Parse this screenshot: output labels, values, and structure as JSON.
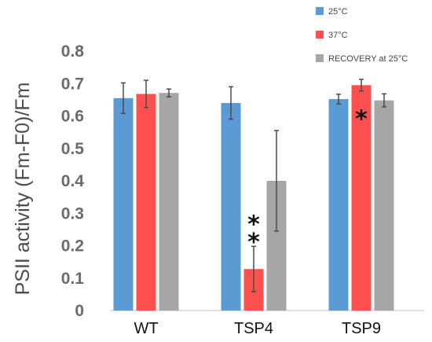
{
  "chart_data": {
    "type": "bar",
    "title": "",
    "xlabel": "",
    "ylabel": "PSII activity (Fm-F0)/Fm",
    "ylim": [
      0,
      0.8
    ],
    "yticks": [
      "0",
      "0.1",
      "0.2",
      "0.3",
      "0.4",
      "0.5",
      "0.6",
      "0.7",
      "0.8"
    ],
    "grid": false,
    "legend_position": "top-right",
    "categories": [
      "WT",
      "TSP4",
      "TSP9"
    ],
    "series": [
      {
        "name": "25°C",
        "color": "#5b9bd5",
        "values": [
          0.655,
          0.64,
          0.652
        ],
        "errors": [
          0.047,
          0.05,
          0.015
        ]
      },
      {
        "name": "37°C",
        "color": "#ff5050",
        "values": [
          0.668,
          0.128,
          0.695
        ],
        "errors": [
          0.042,
          0.07,
          0.018
        ]
      },
      {
        "name": "RECOVERY at 25°C",
        "color": "#a6a6a6",
        "values": [
          0.671,
          0.4,
          0.648
        ],
        "errors": [
          0.012,
          0.155,
          0.02
        ]
      }
    ],
    "annotations": [
      {
        "text": "*",
        "category": "TSP4",
        "series": "37°C",
        "value": 0.29
      },
      {
        "text": "*",
        "category": "TSP4",
        "series": "37°C",
        "value": 0.235
      },
      {
        "text": "*",
        "category": "TSP9",
        "series": "37°C",
        "value": 0.615
      }
    ]
  }
}
